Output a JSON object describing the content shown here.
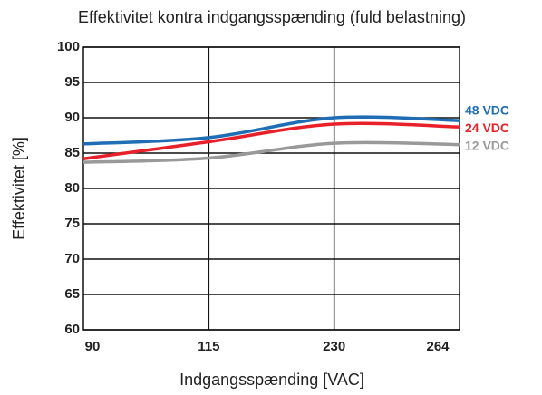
{
  "chart_data": {
    "type": "line",
    "title": "Effektivitet kontra indgangsspænding (fuld belastning)",
    "x_label": "Indgangsspænding [VAC]",
    "y_label": "Effektivitet [%]",
    "categories": [
      "90",
      "115",
      "230",
      "264"
    ],
    "series": [
      {
        "name": "48 VDC",
        "color": "#1f6db5",
        "values": [
          86.3,
          87.2,
          90.0,
          89.6
        ]
      },
      {
        "name": "24 VDC",
        "color": "#e8202a",
        "values": [
          84.2,
          86.6,
          89.1,
          88.7
        ]
      },
      {
        "name": "12 VDC",
        "color": "#999999",
        "values": [
          83.7,
          84.3,
          86.4,
          86.2
        ]
      }
    ],
    "ylim": [
      60,
      100
    ],
    "yticks": [
      60,
      65,
      70,
      75,
      80,
      85,
      90,
      95,
      100
    ],
    "grid": true
  }
}
